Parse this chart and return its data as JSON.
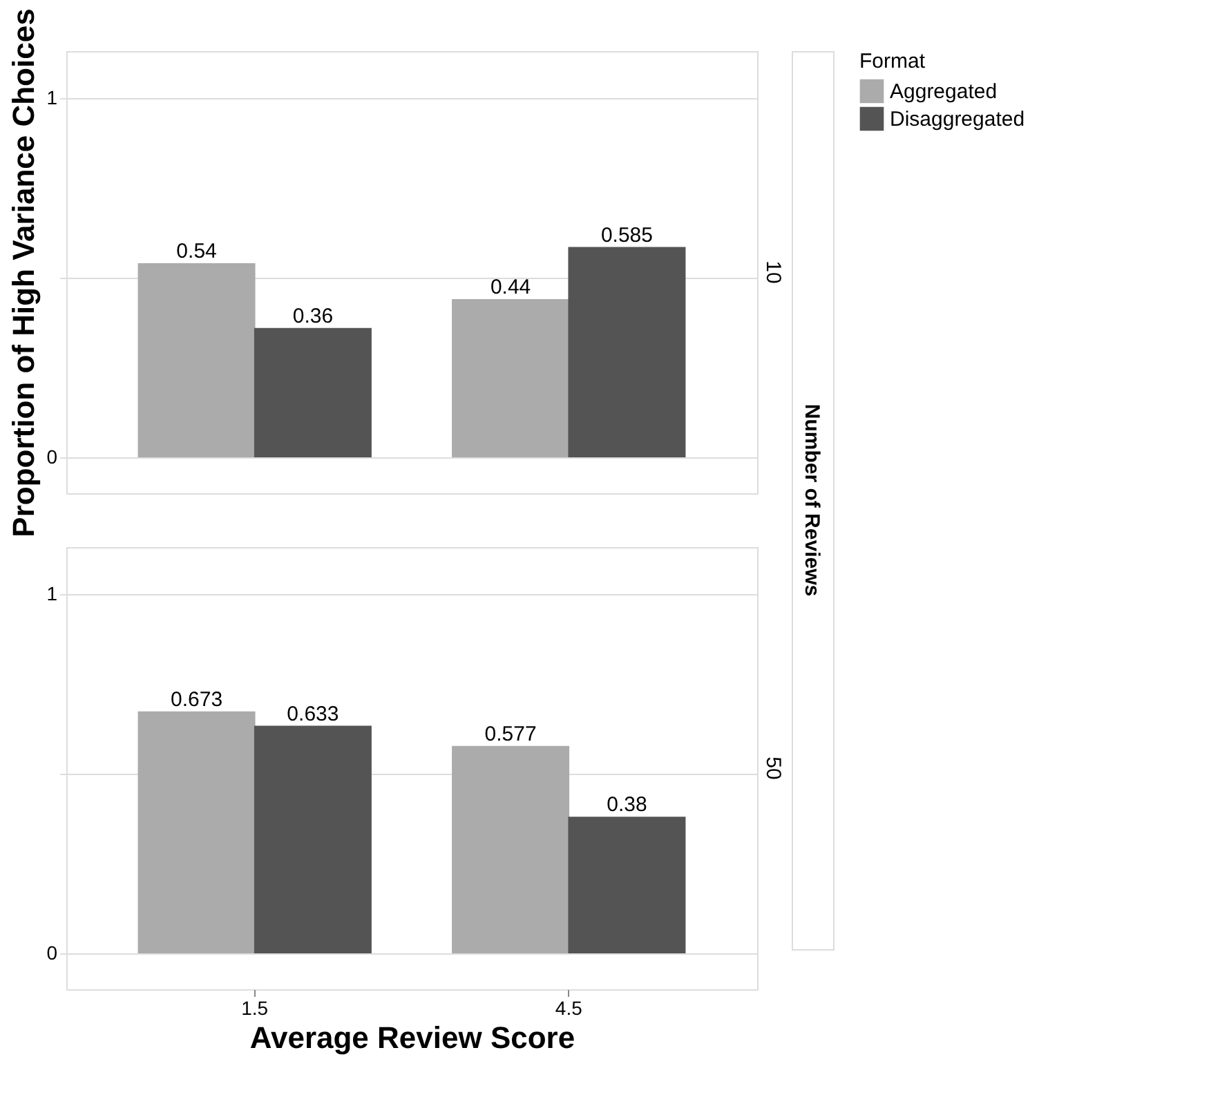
{
  "chart_data": [
    {
      "type": "bar",
      "title": "10",
      "ylabel": "Proportion of High Variance Choices",
      "categories": [
        "1.5",
        "4.5"
      ],
      "series": [
        {
          "name": "Aggregated",
          "color": "#ababab",
          "values": [
            0.54,
            0.44
          ]
        },
        {
          "name": "Disaggregated",
          "color": "#545454",
          "values": [
            0.36,
            0.585
          ]
        }
      ],
      "ylim": [
        -0.1,
        1.13
      ],
      "yticks": [
        0,
        {
          "value": 0.5,
          "label": null
        },
        1
      ],
      "grid": "y",
      "data_labels": true,
      "tick_labels": "y",
      "legend": "top right",
      "legend_title": "Format",
      "annotations": [
        "Number of Reviews"
      ]
    },
    {
      "type": "bar",
      "title": "50",
      "xlabel": "Average Review Score",
      "categories": [
        "1.5",
        "4.5"
      ],
      "series": [
        {
          "name": "Aggregated",
          "color": "#ababab",
          "values": [
            0.673,
            0.577
          ]
        },
        {
          "name": "Disaggregated",
          "color": "#545454",
          "values": [
            0.633,
            0.38
          ]
        }
      ],
      "ylim": [
        -0.1,
        1.13
      ],
      "yticks": [
        0,
        {
          "value": 0.5,
          "label": null
        },
        1
      ],
      "grid": "y",
      "data_labels": true
    }
  ]
}
